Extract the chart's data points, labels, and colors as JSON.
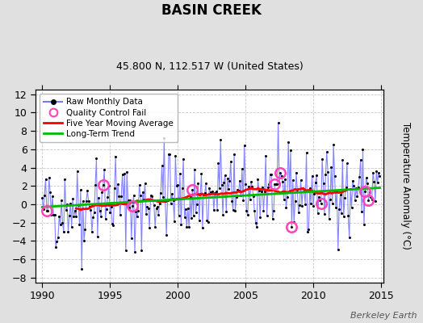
{
  "title": "BASIN CREEK",
  "subtitle": "45.800 N, 112.517 W (United States)",
  "ylabel": "Temperature Anomaly (°C)",
  "ylim": [
    -8.5,
    12.5
  ],
  "xlim": [
    1989.5,
    2015.2
  ],
  "yticks": [
    -8,
    -6,
    -4,
    -2,
    0,
    2,
    4,
    6,
    8,
    10,
    12
  ],
  "xticks": [
    1990,
    1995,
    2000,
    2005,
    2010,
    2015
  ],
  "bg_color": "#e0e0e0",
  "plot_bg_color": "#ffffff",
  "grid_color": "#b0b0b0",
  "raw_line_color": "#7777ff",
  "raw_marker_color": "#000000",
  "ma_color": "#ff0000",
  "trend_color": "#00bb00",
  "qc_color": "#ff44bb",
  "watermark": "Berkeley Earth",
  "seed": 42,
  "n_months": 300
}
